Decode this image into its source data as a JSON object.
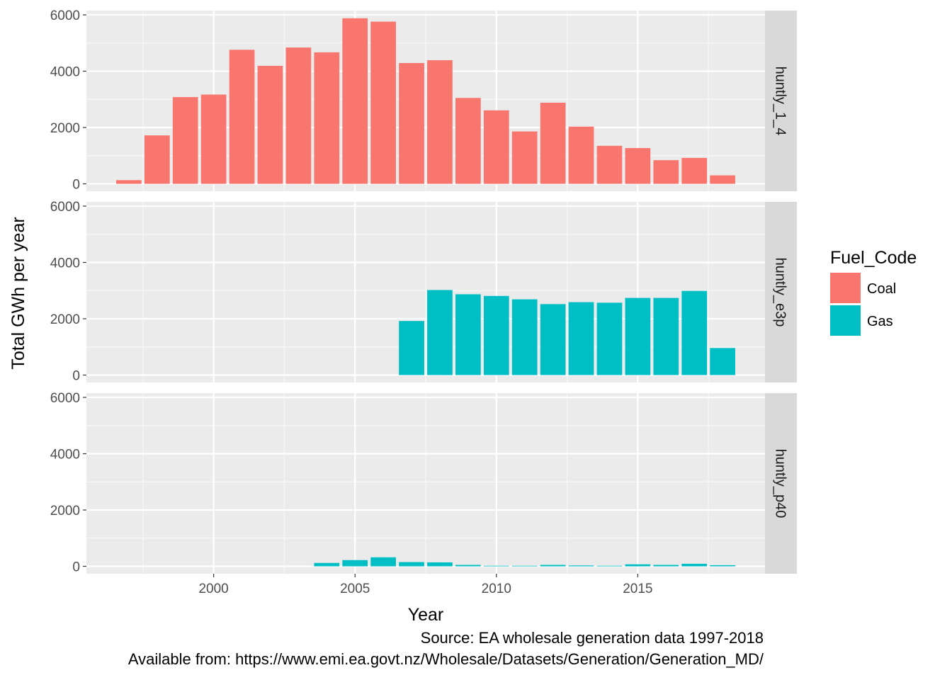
{
  "chart_data": {
    "type": "bar",
    "facet_by": "Gen_Code",
    "facets": [
      "huntly_1_4",
      "huntly_e3p",
      "huntly_p40"
    ],
    "x": [
      1997,
      1998,
      1999,
      2000,
      2001,
      2002,
      2003,
      2004,
      2005,
      2006,
      2007,
      2008,
      2009,
      2010,
      2011,
      2012,
      2013,
      2014,
      2015,
      2016,
      2017,
      2018
    ],
    "x_ticks": [
      2000,
      2005,
      2010,
      2015
    ],
    "xlim": [
      1995.5,
      2019.5
    ],
    "ylim": [
      0,
      6200
    ],
    "y_ticks": [
      0,
      2000,
      4000,
      6000
    ],
    "xlabel": "Year",
    "ylabel": "Total GWh per year",
    "legend": {
      "title": "Fuel_Code",
      "position": "right",
      "entries": [
        {
          "name": "Coal",
          "color": "#F8766D"
        },
        {
          "name": "Gas",
          "color": "#00BFC4"
        }
      ]
    },
    "series": [
      {
        "facet": "huntly_1_4",
        "name": "Coal",
        "color": "#F8766D",
        "values": [
          130,
          1720,
          3080,
          3170,
          4760,
          4190,
          4840,
          4670,
          5880,
          5760,
          4290,
          4390,
          3050,
          2610,
          1860,
          2880,
          2030,
          1350,
          1270,
          840,
          920,
          300
        ]
      },
      {
        "facet": "huntly_e3p",
        "name": "Gas",
        "color": "#00BFC4",
        "values": [
          0,
          0,
          0,
          0,
          0,
          0,
          0,
          0,
          0,
          0,
          1920,
          3020,
          2870,
          2810,
          2690,
          2520,
          2590,
          2570,
          2740,
          2740,
          2990,
          960
        ]
      },
      {
        "facet": "huntly_p40",
        "name": "Gas",
        "color": "#00BFC4",
        "values": [
          0,
          0,
          0,
          0,
          0,
          0,
          0,
          120,
          220,
          320,
          150,
          140,
          50,
          20,
          20,
          50,
          30,
          20,
          70,
          50,
          90,
          40
        ]
      }
    ],
    "grid": true,
    "caption_lines": [
      "Source: EA wholesale generation data 1997-2018",
      "Available from: https://www.emi.ea.govt.nz/Wholesale/Datasets/Generation/Generation_MD/"
    ]
  }
}
